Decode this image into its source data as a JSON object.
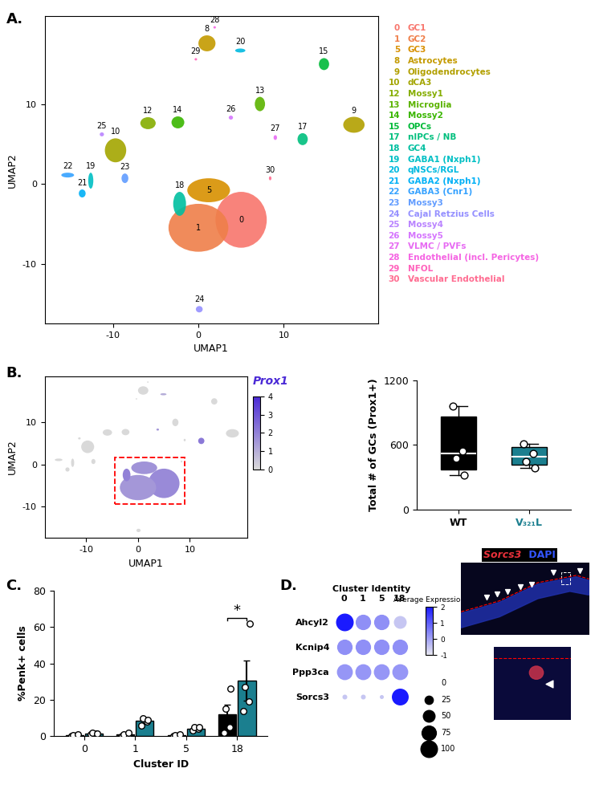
{
  "panel_labels": [
    "A.",
    "B.",
    "C.",
    "D."
  ],
  "chart_data": [
    {
      "type": "scatter",
      "xlabel": "UMAP1",
      "ylabel": "UMAP2",
      "xlim": [
        -18,
        21
      ],
      "ylim": [
        -17.5,
        21
      ],
      "xticks": [
        -10,
        0,
        10
      ],
      "yticks": [
        -10,
        0,
        10
      ],
      "clusters": [
        {
          "id": 0,
          "name": "GC1",
          "color": "#F8766D",
          "x": 5,
          "y": -4.5,
          "width": 6,
          "height": 7
        },
        {
          "id": 1,
          "name": "GC2",
          "color": "#EF7F49",
          "x": 0,
          "y": -5.5,
          "width": 7,
          "height": 6
        },
        {
          "id": 5,
          "name": "GC3",
          "color": "#D89000",
          "x": 1.2,
          "y": -0.8,
          "width": 5,
          "height": 3
        },
        {
          "id": 8,
          "name": "Astrocytes",
          "color": "#C49A00",
          "x": 1,
          "y": 17.6,
          "width": 2,
          "height": 2
        },
        {
          "id": 9,
          "name": "Oligodendrocytes",
          "color": "#B2A000",
          "x": 18.2,
          "y": 7.4,
          "width": 2.5,
          "height": 2
        },
        {
          "id": 10,
          "name": "dCA3",
          "color": "#A3A500",
          "x": -9.7,
          "y": 4.2,
          "width": 2.5,
          "height": 3
        },
        {
          "id": 12,
          "name": "Mossy1",
          "color": "#85AD00",
          "x": -5.9,
          "y": 7.6,
          "width": 1.8,
          "height": 1.5
        },
        {
          "id": 13,
          "name": "Microglia",
          "color": "#5BB300",
          "x": 7.2,
          "y": 10,
          "width": 1.2,
          "height": 1.8
        },
        {
          "id": 14,
          "name": "Mossy2",
          "color": "#39B600",
          "x": -2.4,
          "y": 7.7,
          "width": 1.5,
          "height": 1.5
        },
        {
          "id": 15,
          "name": "OPCs",
          "color": "#00BA38",
          "x": 14.7,
          "y": 15,
          "width": 1.2,
          "height": 1.5
        },
        {
          "id": 17,
          "name": "nIPCs / NB",
          "color": "#00BF7D",
          "x": 12.2,
          "y": 5.6,
          "width": 1.2,
          "height": 1.5
        },
        {
          "id": 18,
          "name": "GC4",
          "color": "#00BFA0",
          "x": -2.2,
          "y": -2.5,
          "width": 1.5,
          "height": 3
        },
        {
          "id": 19,
          "name": "GABA1 (Nxph1)",
          "color": "#00BFC4",
          "x": -12.6,
          "y": 0.4,
          "width": 0.6,
          "height": 2
        },
        {
          "id": 20,
          "name": "qNSCs/RGL",
          "color": "#00BAE0",
          "x": 4.9,
          "y": 16.7,
          "width": 1.2,
          "height": 0.5
        },
        {
          "id": 21,
          "name": "GABA2 (Nxph1)",
          "color": "#00B0F6",
          "x": -13.6,
          "y": -1.2,
          "width": 0.8,
          "height": 1
        },
        {
          "id": 22,
          "name": "GABA3 (Cnr1)",
          "color": "#35A2FF",
          "x": -15.3,
          "y": 1.1,
          "width": 1.5,
          "height": 0.6
        },
        {
          "id": 23,
          "name": "Mossy3",
          "color": "#619CFF",
          "x": -8.6,
          "y": 0.7,
          "width": 0.8,
          "height": 1.2
        },
        {
          "id": 24,
          "name": "Cajal Retzius Cells",
          "color": "#9590FF",
          "x": 0.1,
          "y": -15.7,
          "width": 0.8,
          "height": 0.8
        },
        {
          "id": 25,
          "name": "Mossy4",
          "color": "#B983FF",
          "x": -11.3,
          "y": 6.2,
          "width": 0.5,
          "height": 0.5
        },
        {
          "id": 26,
          "name": "Mossy5",
          "color": "#D575FE",
          "x": 3.8,
          "y": 8.3,
          "width": 0.5,
          "height": 0.5
        },
        {
          "id": 27,
          "name": "VLMC / PVFs",
          "color": "#E76BF3",
          "x": 9,
          "y": 5.8,
          "width": 0.4,
          "height": 0.6
        },
        {
          "id": 28,
          "name": "Endothelial (incl. Pericytes)",
          "color": "#F564E3",
          "x": 1.9,
          "y": 19.6,
          "width": 0.3,
          "height": 0.3
        },
        {
          "id": 29,
          "name": "NFOL",
          "color": "#FF62BC",
          "x": -0.3,
          "y": 15.6,
          "width": 0.3,
          "height": 0.3
        },
        {
          "id": 30,
          "name": "Vascular Endothelial",
          "color": "#FF6C91",
          "x": 8.4,
          "y": 0.7,
          "width": 0.3,
          "height": 0.5
        }
      ]
    },
    {
      "type": "feature",
      "title": "Prox1",
      "xlabel": "UMAP1",
      "ylabel": "UMAP2",
      "xlim": [
        -18,
        21
      ],
      "ylim": [
        -17.5,
        21
      ],
      "xticks": [
        -10,
        0,
        10
      ],
      "yticks": [
        -10,
        0,
        10
      ],
      "colorbar_range": [
        0,
        4
      ],
      "colorbar_ticks": [
        0,
        1,
        2,
        3,
        4
      ],
      "highlight": [
        0,
        1,
        5,
        18
      ],
      "expression": [
        {
          "id": 0,
          "value": 1.8
        },
        {
          "id": 1,
          "value": 1.5
        },
        {
          "id": 5,
          "value": 1.6
        },
        {
          "id": 8,
          "value": 0
        },
        {
          "id": 9,
          "value": 0
        },
        {
          "id": 10,
          "value": 0
        },
        {
          "id": 12,
          "value": 0
        },
        {
          "id": 13,
          "value": 0
        },
        {
          "id": 14,
          "value": 0
        },
        {
          "id": 15,
          "value": 0
        },
        {
          "id": 17,
          "value": 2.2
        },
        {
          "id": 18,
          "value": 2.0
        },
        {
          "id": 19,
          "value": 0
        },
        {
          "id": 20,
          "value": 1.0
        },
        {
          "id": 21,
          "value": 0
        },
        {
          "id": 22,
          "value": 0
        },
        {
          "id": 23,
          "value": 0
        },
        {
          "id": 24,
          "value": 0
        },
        {
          "id": 25,
          "value": 0
        },
        {
          "id": 26,
          "value": 1.5
        },
        {
          "id": 27,
          "value": 0
        },
        {
          "id": 28,
          "value": 0
        },
        {
          "id": 29,
          "value": 0
        },
        {
          "id": 30,
          "value": 0
        }
      ]
    },
    {
      "type": "box",
      "ylabel": "Total # of GCs (Prox1+)",
      "categories": [
        "WT",
        "V₃₂₁L"
      ],
      "colors": [
        "#000000",
        "#1b7f8f"
      ],
      "ylim": [
        0,
        1200
      ],
      "yticks": [
        0,
        600,
        1200
      ],
      "stats": [
        {
          "min": 320,
          "q1": 370,
          "median": 520,
          "q3": 860,
          "max": 960
        },
        {
          "min": 390,
          "q1": 420,
          "median": 490,
          "q3": 580,
          "max": 610
        }
      ],
      "points": [
        [
          960,
          540,
          480,
          320
        ],
        [
          610,
          520,
          450,
          390
        ]
      ]
    },
    {
      "type": "bar",
      "xlabel": "Cluster ID",
      "ylabel": "%Penk+ cells",
      "categories": [
        "0",
        "1",
        "5",
        "18"
      ],
      "ylim": [
        0,
        80
      ],
      "yticks": [
        0,
        20,
        40,
        60,
        80
      ],
      "series": [
        {
          "color": "#000000",
          "values": [
            0.4,
            0.9,
            0.4,
            12
          ],
          "errors": [
            0.3,
            0.5,
            0.3,
            5.5
          ],
          "points": [
            [
              0,
              0,
              0.5,
              1
            ],
            [
              0,
              0.5,
              1,
              2
            ],
            [
              0,
              0,
              0.5,
              1
            ],
            [
              2,
              5,
              15,
              26
            ]
          ]
        },
        {
          "color": "#1b7f8f",
          "values": [
            1.5,
            8.3,
            4.3,
            30.5
          ],
          "errors": [
            0.4,
            1.0,
            0.6,
            11
          ],
          "points": [
            [
              1,
              1.5,
              2,
              1.5
            ],
            [
              6,
              8,
              10,
              9
            ],
            [
              3,
              4,
              5,
              5
            ],
            [
              14,
              19,
              27,
              62
            ]
          ]
        }
      ],
      "annotations": [
        {
          "category": "18",
          "label": "*"
        }
      ]
    },
    {
      "type": "dot",
      "title": "Cluster Identity",
      "categories": [
        "0",
        "1",
        "5",
        "18"
      ],
      "genes": [
        "Ahcyl2",
        "Kcnip4",
        "Ppp3ca",
        "Sorcs3"
      ],
      "average_expression": [
        [
          2.0,
          0.3,
          0.3,
          -0.5
        ],
        [
          0.3,
          0.3,
          0.3,
          0.3
        ],
        [
          0.2,
          0.2,
          0.2,
          0.2
        ],
        [
          -0.5,
          -0.5,
          -0.5,
          2.0
        ]
      ],
      "percent_expressed": [
        [
          100,
          75,
          75,
          50
        ],
        [
          75,
          75,
          75,
          75
        ],
        [
          80,
          80,
          80,
          80
        ],
        [
          5,
          5,
          3,
          90
        ]
      ],
      "colorbar_label": "Average Expression",
      "colorbar_range": [
        -1,
        2
      ],
      "colorbar_ticks": [
        -1,
        0,
        1,
        2
      ],
      "size_legend": [
        0,
        25,
        50,
        75,
        100
      ]
    }
  ],
  "image": {
    "type": "micrograph",
    "labels": [
      {
        "text": "Sorcs3",
        "color": "#e8303a"
      },
      {
        "text": "DAPI",
        "color": "#3355ff"
      }
    ]
  }
}
